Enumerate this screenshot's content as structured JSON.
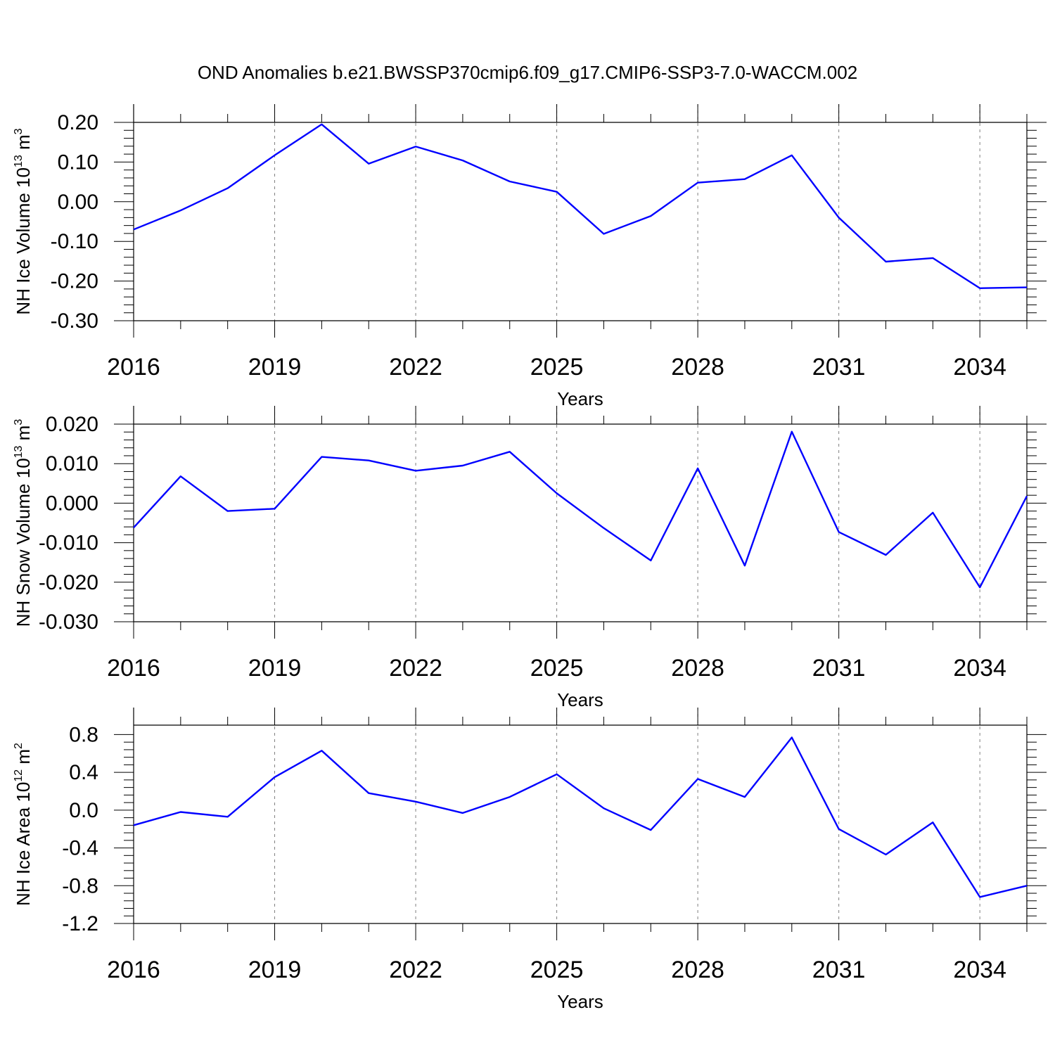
{
  "title": "OND Anomalies b.e21.BWSSP370cmip6.f09_g17.CMIP6-SSP3-7.0-WACCM.002",
  "colors": {
    "line": "#0000ff",
    "axis": "#000000",
    "grid": "#7f7f7f"
  },
  "chart_data": [
    {
      "type": "line",
      "xlabel": "Years",
      "ylabel": {
        "base": "NH Ice Volume 10",
        "exp": "13",
        "unit": " m",
        "unit_exp": "3"
      },
      "xlim": [
        2016,
        2035
      ],
      "x_ticks": [
        "2016",
        "2019",
        "2022",
        "2025",
        "2028",
        "2031",
        "2034"
      ],
      "ylim": [
        -0.3,
        0.2
      ],
      "y_ticks": [
        "0.20",
        "0.10",
        "0.00",
        "-0.10",
        "-0.20",
        "-0.30"
      ],
      "grid": "vertical dashed at labeled years",
      "x": [
        2016,
        2017,
        2018,
        2019,
        2020,
        2021,
        2022,
        2023,
        2024,
        2025,
        2026,
        2027,
        2028,
        2029,
        2030,
        2031,
        2032,
        2033,
        2034,
        2035
      ],
      "values": [
        -0.07,
        -0.022,
        0.034,
        0.117,
        0.195,
        0.096,
        0.139,
        0.104,
        0.051,
        0.025,
        -0.081,
        -0.036,
        0.048,
        0.057,
        0.117,
        -0.04,
        -0.151,
        -0.142,
        -0.218,
        -0.216
      ]
    },
    {
      "type": "line",
      "xlabel": "Years",
      "ylabel": {
        "base": "NH Snow Volume 10",
        "exp": "13",
        "unit": " m",
        "unit_exp": "3"
      },
      "xlim": [
        2016,
        2035
      ],
      "x_ticks": [
        "2016",
        "2019",
        "2022",
        "2025",
        "2028",
        "2031",
        "2034"
      ],
      "ylim": [
        -0.03,
        0.02
      ],
      "y_ticks": [
        "0.020",
        "0.010",
        "0.000",
        "-0.010",
        "-0.020",
        "-0.030"
      ],
      "grid": "vertical dashed at labeled years",
      "x": [
        2016,
        2017,
        2018,
        2019,
        2020,
        2021,
        2022,
        2023,
        2024,
        2025,
        2026,
        2027,
        2028,
        2029,
        2030,
        2031,
        2032,
        2033,
        2034,
        2035
      ],
      "values": [
        -0.0062,
        0.0068,
        -0.002,
        -0.0014,
        0.0117,
        0.0108,
        0.0082,
        0.0095,
        0.013,
        0.0025,
        -0.0063,
        -0.0145,
        0.0088,
        -0.0158,
        0.0181,
        -0.0073,
        -0.0131,
        -0.0024,
        -0.0213,
        0.0018
      ]
    },
    {
      "type": "line",
      "xlabel": "Years",
      "ylabel": {
        "base": "NH Ice Area 10",
        "exp": "12",
        "unit": " m",
        "unit_exp": "2"
      },
      "xlim": [
        2016,
        2035
      ],
      "x_ticks": [
        "2016",
        "2019",
        "2022",
        "2025",
        "2028",
        "2031",
        "2034"
      ],
      "ylim": [
        -1.2,
        0.9
      ],
      "y_ticks": [
        "0.8",
        "0.4",
        "0.0",
        "-0.4",
        "-0.8",
        "-1.2"
      ],
      "grid": "vertical dashed at labeled years",
      "x": [
        2016,
        2017,
        2018,
        2019,
        2020,
        2021,
        2022,
        2023,
        2024,
        2025,
        2026,
        2027,
        2028,
        2029,
        2030,
        2031,
        2032,
        2033,
        2034,
        2035
      ],
      "values": [
        -0.16,
        -0.02,
        -0.07,
        0.35,
        0.63,
        0.18,
        0.09,
        -0.03,
        0.14,
        0.38,
        0.02,
        -0.21,
        0.33,
        0.14,
        0.77,
        -0.2,
        -0.47,
        -0.13,
        -0.92,
        -0.8
      ]
    }
  ]
}
